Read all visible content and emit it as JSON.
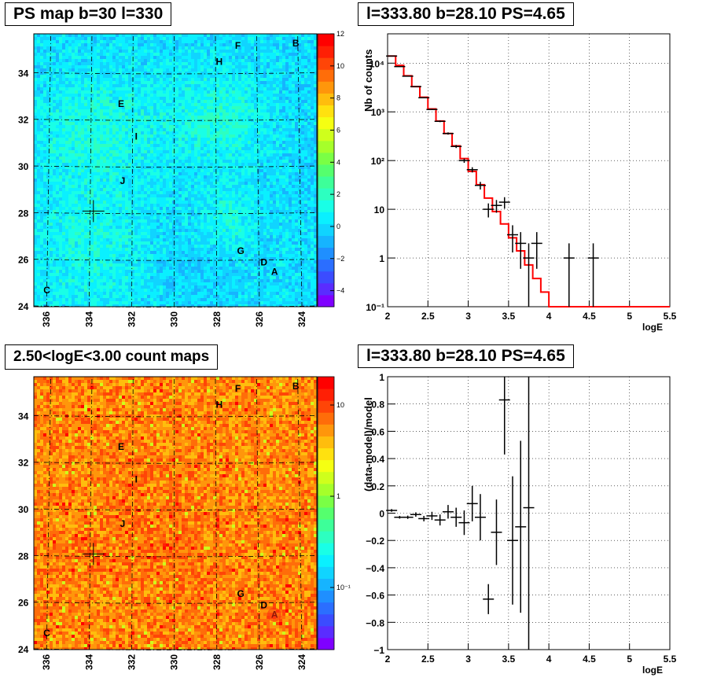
{
  "titles": {
    "tl": "PS map b=30 l=330",
    "tr": "l=333.80 b=28.10 PS=4.65",
    "bl": "2.50<logE<3.00 count maps",
    "br": "l=333.80 b=28.10 PS=4.65"
  },
  "chart_data": [
    {
      "type": "heatmap",
      "title": "PS map b=30 l=330",
      "x_ticks": [
        "336",
        "334",
        "332",
        "330",
        "328",
        "326",
        "324"
      ],
      "y_ticks": [
        "24",
        "26",
        "28",
        "30",
        "32",
        "34"
      ],
      "colorbar_ticks": [
        "12",
        "10",
        "8",
        "6",
        "4",
        "2",
        "0",
        "−2",
        "−4"
      ],
      "zlim": [
        -5,
        12
      ],
      "sources": [
        {
          "label": "A",
          "l": 325.3,
          "b": 25.5
        },
        {
          "label": "B",
          "l": 324.3,
          "b": 35.3
        },
        {
          "label": "C",
          "l": 336.0,
          "b": 24.7
        },
        {
          "label": "D",
          "l": 325.8,
          "b": 25.9
        },
        {
          "label": "E",
          "l": 332.5,
          "b": 32.7
        },
        {
          "label": "F",
          "l": 327.0,
          "b": 35.2
        },
        {
          "label": "G",
          "l": 326.9,
          "b": 26.4
        },
        {
          "label": "H",
          "l": 327.9,
          "b": 34.5
        },
        {
          "label": "I",
          "l": 331.7,
          "b": 31.3
        },
        {
          "label": "J",
          "l": 332.4,
          "b": 29.4
        }
      ],
      "marker": {
        "l": 333.8,
        "b": 28.1
      }
    },
    {
      "type": "line",
      "title": "l=333.80 b=28.10 PS=4.65",
      "xlabel": "logE",
      "ylabel": "Nb of counts",
      "xlim": [
        2,
        5.5
      ],
      "ylim": [
        0.1,
        40000
      ],
      "y_scale": "log",
      "x_ticks": [
        "2",
        "2.5",
        "3",
        "3.5",
        "4",
        "4.5",
        "5",
        "5.5"
      ],
      "y_ticks": [
        "10⁻¹",
        "1",
        "10",
        "10²",
        "10³",
        "10⁴"
      ],
      "model_color": "#ff0000",
      "model_steps": {
        "edges": [
          2.0,
          2.1,
          2.2,
          2.3,
          2.4,
          2.5,
          2.6,
          2.7,
          2.8,
          2.9,
          3.0,
          3.1,
          3.2,
          3.3,
          3.4,
          3.5,
          3.6,
          3.7,
          3.8,
          3.9,
          4.0,
          4.1,
          5.5
        ],
        "values": [
          14000,
          9000,
          5500,
          3300,
          2000,
          1150,
          650,
          360,
          200,
          110,
          60,
          32,
          17,
          9,
          5,
          2.6,
          1.4,
          0.72,
          0.38,
          0.2,
          0.1,
          0.06
        ]
      },
      "data_points": [
        {
          "x": 2.05,
          "y": 14000,
          "err_lo": 120,
          "err_hi": 120
        },
        {
          "x": 2.15,
          "y": 8500,
          "err_lo": 90,
          "err_hi": 90
        },
        {
          "x": 2.25,
          "y": 5400,
          "err_lo": 70,
          "err_hi": 70
        },
        {
          "x": 2.35,
          "y": 3300,
          "err_lo": 60,
          "err_hi": 60
        },
        {
          "x": 2.45,
          "y": 1950,
          "err_lo": 45,
          "err_hi": 45
        },
        {
          "x": 2.55,
          "y": 1120,
          "err_lo": 33,
          "err_hi": 33
        },
        {
          "x": 2.65,
          "y": 640,
          "err_lo": 25,
          "err_hi": 25
        },
        {
          "x": 2.75,
          "y": 360,
          "err_lo": 19,
          "err_hi": 19
        },
        {
          "x": 2.85,
          "y": 195,
          "err_lo": 14,
          "err_hi": 14
        },
        {
          "x": 2.95,
          "y": 100,
          "err_lo": 10,
          "err_hi": 10
        },
        {
          "x": 3.05,
          "y": 65,
          "err_lo": 8,
          "err_hi": 8
        },
        {
          "x": 3.15,
          "y": 31,
          "err_lo": 5.5,
          "err_hi": 5.5
        },
        {
          "x": 3.25,
          "y": 10,
          "err_lo": 3.2,
          "err_hi": 3.2
        },
        {
          "x": 3.35,
          "y": 12,
          "err_lo": 3.5,
          "err_hi": 3.5
        },
        {
          "x": 3.45,
          "y": 14,
          "err_lo": 3.7,
          "err_hi": 3.7
        },
        {
          "x": 3.55,
          "y": 3,
          "err_lo": 1.7,
          "err_hi": 1.7
        },
        {
          "x": 3.65,
          "y": 2,
          "err_lo": 1.4,
          "err_hi": 1.4
        },
        {
          "x": 3.75,
          "y": 1,
          "err_lo": 0.95,
          "err_hi": 1
        },
        {
          "x": 3.85,
          "y": 2,
          "err_lo": 1.4,
          "err_hi": 1.4
        },
        {
          "x": 4.25,
          "y": 1,
          "err_lo": 0.95,
          "err_hi": 1
        },
        {
          "x": 4.55,
          "y": 1,
          "err_lo": 0.95,
          "err_hi": 1
        }
      ]
    },
    {
      "type": "heatmap",
      "title": "2.50<logE<3.00 count maps",
      "x_ticks": [
        "336",
        "334",
        "332",
        "330",
        "328",
        "326",
        "324"
      ],
      "y_ticks": [
        "24",
        "26",
        "28",
        "30",
        "32",
        "34"
      ],
      "colorbar_ticks": [
        "10",
        "1",
        "10⁻¹"
      ],
      "z_scale": "log"
    },
    {
      "type": "scatter",
      "title": "l=333.80 b=28.10 PS=4.65",
      "xlabel": "logE",
      "ylabel": "(data-model)/model",
      "xlim": [
        2,
        5.5
      ],
      "ylim": [
        -1,
        1
      ],
      "x_ticks": [
        "2",
        "2.5",
        "3",
        "3.5",
        "4",
        "4.5",
        "5",
        "5.5"
      ],
      "y_ticks": [
        "1",
        "0.8",
        "0.6",
        "0.4",
        "0.2",
        "0",
        "−0.2",
        "−0.4",
        "−0.6",
        "−0.8",
        "−1"
      ],
      "data_points": [
        {
          "x": 2.05,
          "y": 0.02,
          "err": 0.01
        },
        {
          "x": 2.15,
          "y": -0.03,
          "err": 0.01
        },
        {
          "x": 2.25,
          "y": -0.03,
          "err": 0.012
        },
        {
          "x": 2.35,
          "y": -0.01,
          "err": 0.016
        },
        {
          "x": 2.45,
          "y": -0.04,
          "err": 0.02
        },
        {
          "x": 2.55,
          "y": -0.02,
          "err": 0.03
        },
        {
          "x": 2.65,
          "y": -0.05,
          "err": 0.04
        },
        {
          "x": 2.75,
          "y": 0.01,
          "err": 0.05
        },
        {
          "x": 2.85,
          "y": -0.03,
          "err": 0.07
        },
        {
          "x": 2.95,
          "y": -0.07,
          "err": 0.09
        },
        {
          "x": 3.05,
          "y": 0.07,
          "err": 0.13
        },
        {
          "x": 3.15,
          "y": -0.03,
          "err": 0.17
        },
        {
          "x": 3.25,
          "y": -0.63,
          "err": 0.11
        },
        {
          "x": 3.35,
          "y": -0.14,
          "err": 0.24
        },
        {
          "x": 3.45,
          "y": 0.83,
          "err": 0.4
        },
        {
          "x": 3.55,
          "y": -0.2,
          "err": 0.47
        },
        {
          "x": 3.65,
          "y": -0.1,
          "err": 0.63
        },
        {
          "x": 3.75,
          "y": 0.04,
          "err": 1.1
        }
      ]
    }
  ]
}
